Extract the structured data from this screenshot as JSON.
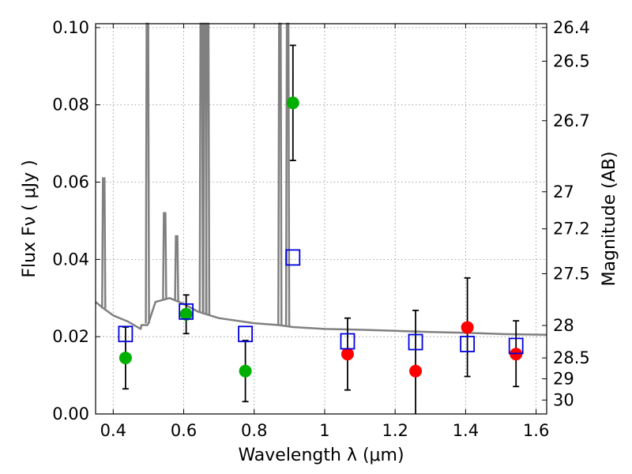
{
  "chart_data": {
    "type": "scatter",
    "xlabel": "Wavelength  λ (μm)",
    "ylabel": "Flux  Fν  ( μJy )",
    "y2label": "Magnitude (AB)",
    "xlim": [
      0.35,
      1.63
    ],
    "ylim": [
      0.0,
      0.101
    ],
    "x_ticks": [
      0.4,
      0.6,
      0.8,
      1.0,
      1.2,
      1.4,
      1.6
    ],
    "x_tick_labels": [
      "0.4",
      "0.6",
      "0.8",
      "1",
      "1.2",
      "1.4",
      "1.6"
    ],
    "y_ticks": [
      0.0,
      0.02,
      0.04,
      0.06,
      0.08,
      0.1
    ],
    "y_tick_labels": [
      "0.00",
      "0.02",
      "0.04",
      "0.06",
      "0.08",
      "0.10"
    ],
    "y2_ticks": [
      {
        "label": "26.4",
        "flux": 0.1
      },
      {
        "label": "26.5",
        "flux": 0.0913
      },
      {
        "label": "26.7",
        "flux": 0.0759
      },
      {
        "label": "27",
        "flux": 0.0575
      },
      {
        "label": "27.2",
        "flux": 0.0479
      },
      {
        "label": "27.5",
        "flux": 0.0363
      },
      {
        "label": "28",
        "flux": 0.0229
      },
      {
        "label": "28.5",
        "flux": 0.0145
      },
      {
        "label": "29",
        "flux": 0.0091
      },
      {
        "label": "30",
        "flux": 0.0036
      }
    ],
    "grid": true,
    "colors": {
      "template": "#808080",
      "green": "#00b000",
      "red": "#ff0000",
      "model_box": "#0000dd",
      "errorbar": "#000000",
      "grid": "#888888"
    },
    "series": [
      {
        "marker": "circle",
        "color": "green",
        "points": [
          {
            "x": 0.435,
            "y": 0.0145,
            "ylo": 0.0065,
            "yhi": 0.0225
          },
          {
            "x": 0.607,
            "y": 0.0258,
            "ylo": 0.0208,
            "yhi": 0.0308
          },
          {
            "x": 0.775,
            "y": 0.0111,
            "ylo": 0.0032,
            "yhi": 0.019
          },
          {
            "x": 0.91,
            "y": 0.0805,
            "ylo": 0.0656,
            "yhi": 0.0954
          }
        ]
      },
      {
        "marker": "circle",
        "color": "red",
        "points": [
          {
            "x": 1.065,
            "y": 0.0155,
            "ylo": 0.0062,
            "yhi": 0.0248
          },
          {
            "x": 1.258,
            "y": 0.0111,
            "ylo": 0.0,
            "yhi": 0.0268
          },
          {
            "x": 1.405,
            "y": 0.0224,
            "ylo": 0.0097,
            "yhi": 0.0352
          },
          {
            "x": 1.543,
            "y": 0.0155,
            "ylo": 0.0071,
            "yhi": 0.0241
          }
        ]
      },
      {
        "marker": "open-square",
        "color": "model_box",
        "points": [
          {
            "x": 0.435,
            "y": 0.0207
          },
          {
            "x": 0.607,
            "y": 0.0265
          },
          {
            "x": 0.775,
            "y": 0.0207
          },
          {
            "x": 0.91,
            "y": 0.0405
          },
          {
            "x": 1.065,
            "y": 0.0188
          },
          {
            "x": 1.258,
            "y": 0.0186
          },
          {
            "x": 1.405,
            "y": 0.0181
          },
          {
            "x": 1.543,
            "y": 0.0176
          }
        ]
      }
    ],
    "template_spectrum": {
      "continuum": [
        [
          0.35,
          0.029
        ],
        [
          0.37,
          0.0275
        ],
        [
          0.4,
          0.0255
        ],
        [
          0.44,
          0.024
        ],
        [
          0.48,
          0.023
        ],
        [
          0.5,
          0.0235
        ],
        [
          0.52,
          0.029
        ],
        [
          0.56,
          0.03
        ],
        [
          0.6,
          0.0285
        ],
        [
          0.64,
          0.0265
        ],
        [
          0.7,
          0.0248
        ],
        [
          0.8,
          0.0235
        ],
        [
          0.87,
          0.023
        ],
        [
          0.91,
          0.0225
        ],
        [
          1.0,
          0.022
        ],
        [
          1.1,
          0.0218
        ],
        [
          1.2,
          0.0215
        ],
        [
          1.3,
          0.0212
        ],
        [
          1.4,
          0.021
        ],
        [
          1.5,
          0.0207
        ],
        [
          1.63,
          0.0205
        ]
      ],
      "dips": [
        [
          0.478,
          0.022
        ],
        [
          0.493,
          0.023
        ],
        [
          0.497,
          0.023
        ]
      ],
      "lines": [
        {
          "x": 0.373,
          "peak": 0.061
        },
        {
          "x": 0.497,
          "peak": 0.101
        },
        {
          "x": 0.546,
          "peak": 0.052
        },
        {
          "x": 0.58,
          "peak": 0.046
        },
        {
          "x": 0.65,
          "peak": 0.101
        },
        {
          "x": 0.66,
          "peak": 0.101
        },
        {
          "x": 0.668,
          "peak": 0.101
        },
        {
          "x": 0.873,
          "peak": 0.101
        },
        {
          "x": 0.895,
          "peak": 0.101
        }
      ]
    }
  }
}
